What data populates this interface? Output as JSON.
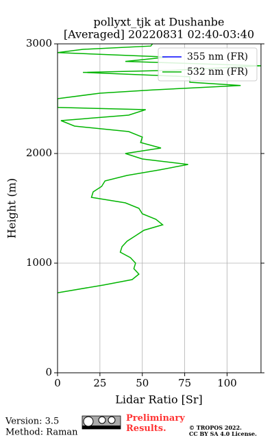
{
  "chart_data": {
    "type": "line",
    "title": "pollyxt_tjk at Dushanbe",
    "subtitle": "[Averaged] 20220831 02:40-03:40",
    "x_label": "Lidar Ratio [Sr]",
    "y_label": "Height (m)",
    "heights": [
      730,
      800,
      850,
      900,
      950,
      1000,
      1050,
      1100,
      1150,
      1200,
      1250,
      1300,
      1350,
      1400,
      1450,
      1500,
      1550,
      1600,
      1650,
      1700,
      1750,
      1800,
      1850,
      1900,
      1950,
      2000,
      2050,
      2100,
      2150,
      2200,
      2250,
      2300,
      2350,
      2400,
      2420,
      2500,
      2550,
      2580,
      2620,
      2650,
      2700,
      2740,
      2760,
      2800,
      2840,
      2880,
      2920,
      2950,
      2980,
      3000
    ],
    "series": [
      {
        "name": "355 nm (FR)",
        "color": "#0000ff",
        "values": [
          null,
          null,
          null,
          null,
          null,
          null,
          null,
          null,
          null,
          null,
          null,
          null,
          null,
          null,
          null,
          null,
          null,
          null,
          null,
          null,
          null,
          null,
          null,
          null,
          null,
          null,
          null,
          null,
          null,
          null,
          null,
          null,
          null,
          null,
          null,
          null,
          null,
          null,
          null,
          null,
          null,
          null,
          null,
          null,
          null,
          null,
          null,
          null,
          null,
          null
        ]
      },
      {
        "name": "532 nm (FR)",
        "color": "#00b400",
        "values": [
          0,
          27,
          44,
          48,
          45,
          46,
          43,
          37,
          38,
          41,
          46,
          51,
          62,
          58,
          50,
          48,
          40,
          20,
          21,
          26,
          28,
          41,
          60,
          77,
          50,
          40,
          61,
          49,
          50,
          42,
          10,
          2,
          42,
          52,
          0,
          0,
          25,
          56,
          108,
          78,
          78,
          15,
          70,
          120,
          40,
          65,
          0,
          15,
          55,
          56
        ]
      }
    ],
    "xlim": [
      0,
      120
    ],
    "xticks": [
      0,
      25,
      50,
      75,
      100
    ],
    "ylim": [
      0,
      3000
    ],
    "yticks": [
      0,
      1000,
      2000,
      3000
    ],
    "grid": true,
    "legend": "upper right"
  },
  "footer": {
    "version": "Version: 3.5",
    "method": "Method: Raman",
    "status": "Preliminary Results.",
    "copyright": "© TROPOS 2022.",
    "license": "CC BY SA 4.0 License."
  }
}
